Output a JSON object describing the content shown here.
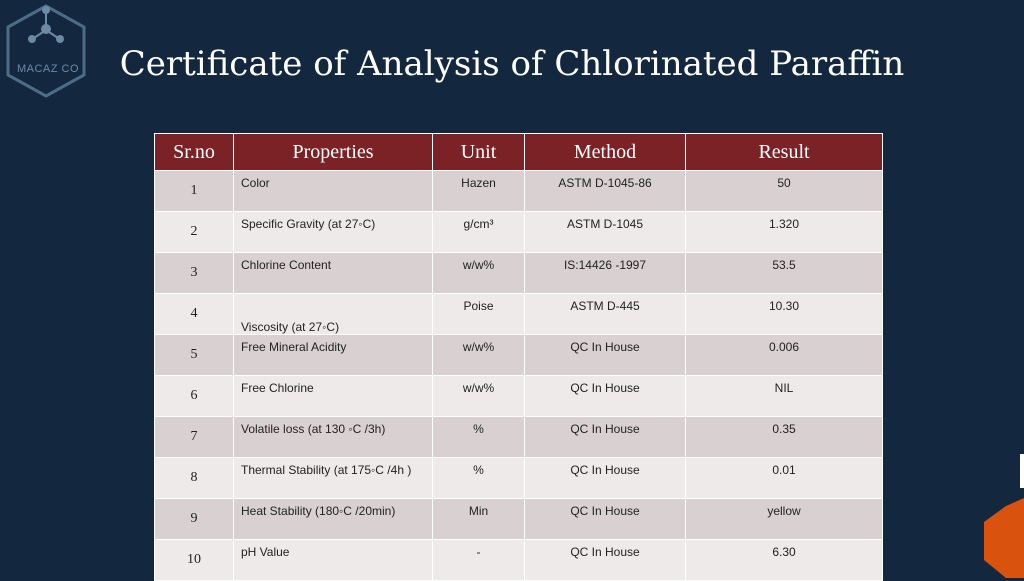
{
  "logo": {
    "text": "MACAZ CO",
    "icon": "molecule-hexagon-icon"
  },
  "title": "Certificate of Analysis of Chlorinated Paraffin",
  "table": {
    "headers": [
      "Sr.no",
      "Properties",
      "Unit",
      "Method",
      "Result"
    ],
    "rows": [
      {
        "no": "1",
        "property": "Color",
        "unit": "Hazen",
        "method": "ASTM D-1045-86",
        "result": "50"
      },
      {
        "no": "2",
        "property": "Specific Gravity (at 27◦C)",
        "unit": "g/cm³",
        "method": "ASTM D-1045",
        "result": "1.320"
      },
      {
        "no": "3",
        "property": "Chlorine Content",
        "unit": "w/w%",
        "method": "IS:14426 -1997",
        "result": "53.5"
      },
      {
        "no": "4",
        "property": "Viscosity (at 27◦C)",
        "unit": "Poise",
        "method": "ASTM D-445",
        "result": "10.30"
      },
      {
        "no": "5",
        "property": "Free Mineral Acidity",
        "unit": "w/w%",
        "method": "QC In House",
        "result": "0.006"
      },
      {
        "no": "6",
        "property": "Free Chlorine",
        "unit": "w/w%",
        "method": "QC In House",
        "result": "NIL"
      },
      {
        "no": "7",
        "property": "Volatile loss (at 130 ◦C /3h)",
        "unit": "%",
        "method": "QC In House",
        "result": "0.35"
      },
      {
        "no": "8",
        "property": "Thermal Stability (at 175◦C /4h )",
        "unit": "%",
        "method": "QC In House",
        "result": "0.01"
      },
      {
        "no": "9",
        "property": "Heat Stability (180◦C /20min)",
        "unit": "Min",
        "method": "QC In House",
        "result": "yellow"
      },
      {
        "no": "10",
        "property": "pH Value",
        "unit": "-",
        "method": "QC In House",
        "result": "6.30"
      }
    ]
  },
  "colors": {
    "background": "#13283f",
    "header": "#7b2226",
    "row_odd": "#d9d1d1",
    "row_even": "#eeeaea",
    "accent": "#d9530f"
  }
}
